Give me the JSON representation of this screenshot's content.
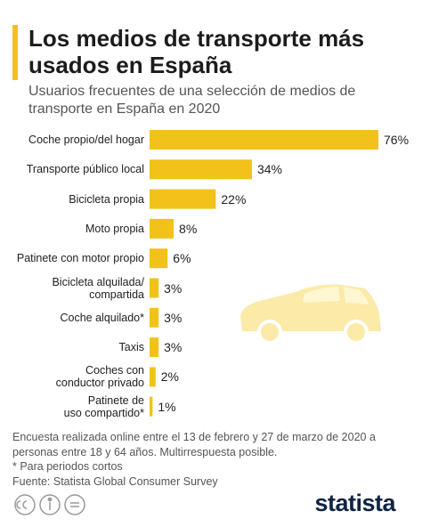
{
  "chart_data": {
    "type": "bar",
    "orientation": "horizontal",
    "title": "Los medios de transporte más usados en España",
    "subtitle": "Usuarios frecuentes de una selección de medios de transporte en España en 2020",
    "categories": [
      "Coche propio/del hogar",
      "Transporte público local",
      "Bicicleta propia",
      "Moto propia",
      "Patinete con motor propio",
      "Bicicleta alquilada/\ncompartida",
      "Coche alquilado*",
      "Taxis",
      "Coches con\nconductor privado",
      "Patinete de\nuso compartido*"
    ],
    "values": [
      76,
      34,
      22,
      8,
      6,
      3,
      3,
      3,
      2,
      1
    ],
    "value_labels": [
      "76%",
      "34%",
      "22%",
      "8%",
      "6%",
      "3%",
      "3%",
      "3%",
      "2%",
      "1%"
    ],
    "color": "#f2c21b",
    "xlim": [
      0,
      76
    ],
    "notes": [
      "Encuesta realizada online entre el 13 de febrero y 27 de marzo de 2020 a personas entre 18 y 64 años. Multirrespuesta posible.",
      "* Para periodos cortos",
      "Fuente: Statista Global Consumer Survey"
    ],
    "logo": "statista"
  }
}
